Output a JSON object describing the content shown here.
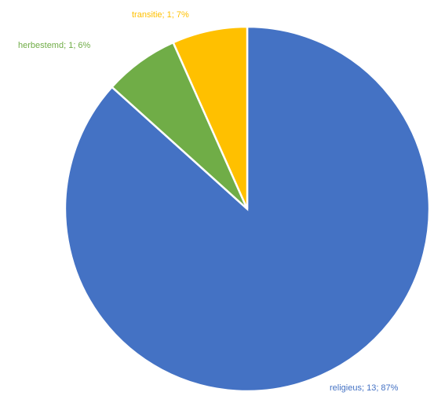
{
  "chart_data": {
    "type": "pie",
    "slices": [
      {
        "label": "religieus",
        "value": 13,
        "percent": "87%",
        "color": "#4472C4"
      },
      {
        "label": "herbestemd",
        "value": 1,
        "percent": "6%",
        "color": "#70AD47"
      },
      {
        "label": "transitie",
        "value": 1,
        "percent": "7%",
        "color": "#FFC000"
      }
    ],
    "data_labels": [
      "religieus; 13; 87%",
      "herbestemd; 1; 6%",
      "transitie; 1; 7%"
    ],
    "legend": "none"
  }
}
